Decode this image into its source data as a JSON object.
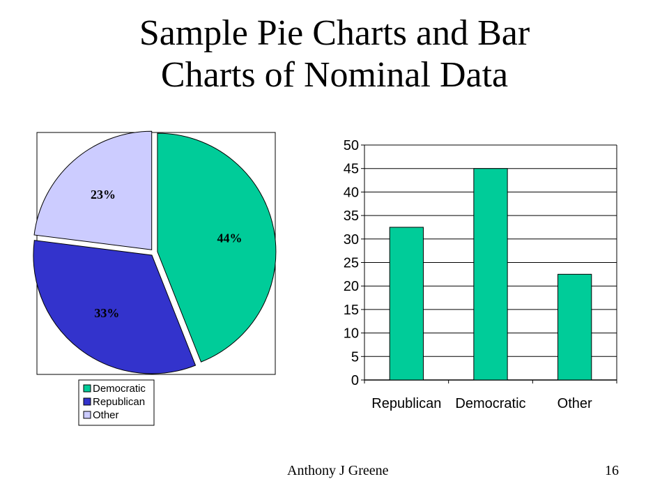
{
  "slide": {
    "title_line1": "Sample Pie Charts and Bar",
    "title_line2": "Charts of Nominal Data",
    "author": "Anthony J Greene",
    "page_number": "16"
  },
  "colors": {
    "Democratic": "#00CC99",
    "Republican": "#3333CC",
    "Other": "#CCCCFF"
  },
  "chart_data": [
    {
      "type": "pie",
      "categories": [
        "Democratic",
        "Republican",
        "Other"
      ],
      "values": [
        44,
        33,
        23
      ],
      "labels": [
        "44%",
        "33%",
        "23%"
      ],
      "exploded": true,
      "legend": {
        "position": "bottom",
        "entries": [
          "Democratic",
          "Republican",
          "Other"
        ]
      }
    },
    {
      "type": "bar",
      "categories": [
        "Republican",
        "Democratic",
        "Other"
      ],
      "values": [
        32.5,
        45,
        22.5
      ],
      "ylim": [
        0,
        50
      ],
      "yticks": [
        0,
        5,
        10,
        15,
        20,
        25,
        30,
        35,
        40,
        45,
        50
      ],
      "grid": true,
      "bar_color": "#00CC99"
    }
  ]
}
